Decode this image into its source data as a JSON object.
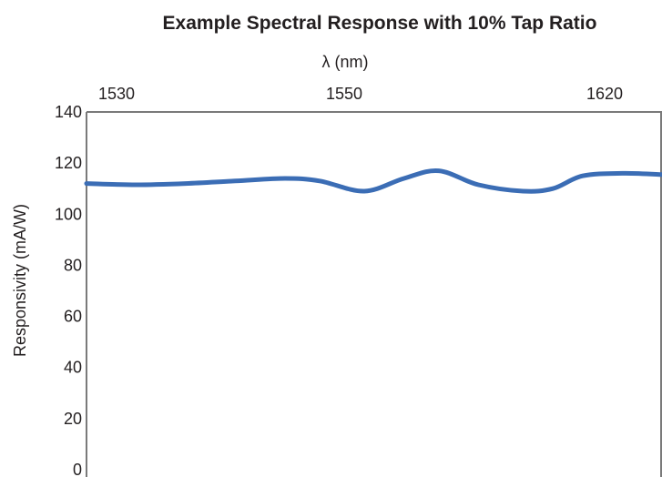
{
  "chart_data": {
    "type": "line",
    "title": "Example Spectral Response with 10% Tap Ratio",
    "xlabel": "λ (nm)",
    "ylabel": "Responsivity (mA/W)",
    "x_ticks": [
      "1530",
      "1550",
      "1620"
    ],
    "x_axis_position": "top",
    "ylim": [
      0,
      140
    ],
    "y_ticks": [
      0,
      20,
      40,
      60,
      80,
      100,
      120,
      140
    ],
    "grid": false,
    "series": [
      {
        "color": "#3b6db5",
        "points": [
          {
            "x": 0.0,
            "y": 112
          },
          {
            "x": 0.1,
            "y": 111.5
          },
          {
            "x": 0.2,
            "y": 112
          },
          {
            "x": 0.3,
            "y": 113
          },
          {
            "x": 0.4,
            "y": 114
          },
          {
            "x": 0.47,
            "y": 113
          },
          {
            "x": 0.56,
            "y": 109
          },
          {
            "x": 0.64,
            "y": 114
          },
          {
            "x": 0.71,
            "y": 117
          },
          {
            "x": 0.79,
            "y": 111.5
          },
          {
            "x": 0.88,
            "y": 109
          },
          {
            "x": 0.94,
            "y": 110
          },
          {
            "x": 1.0,
            "y": 115
          },
          {
            "x": 1.08,
            "y": 116
          },
          {
            "x": 1.16,
            "y": 115.5
          }
        ]
      }
    ]
  }
}
